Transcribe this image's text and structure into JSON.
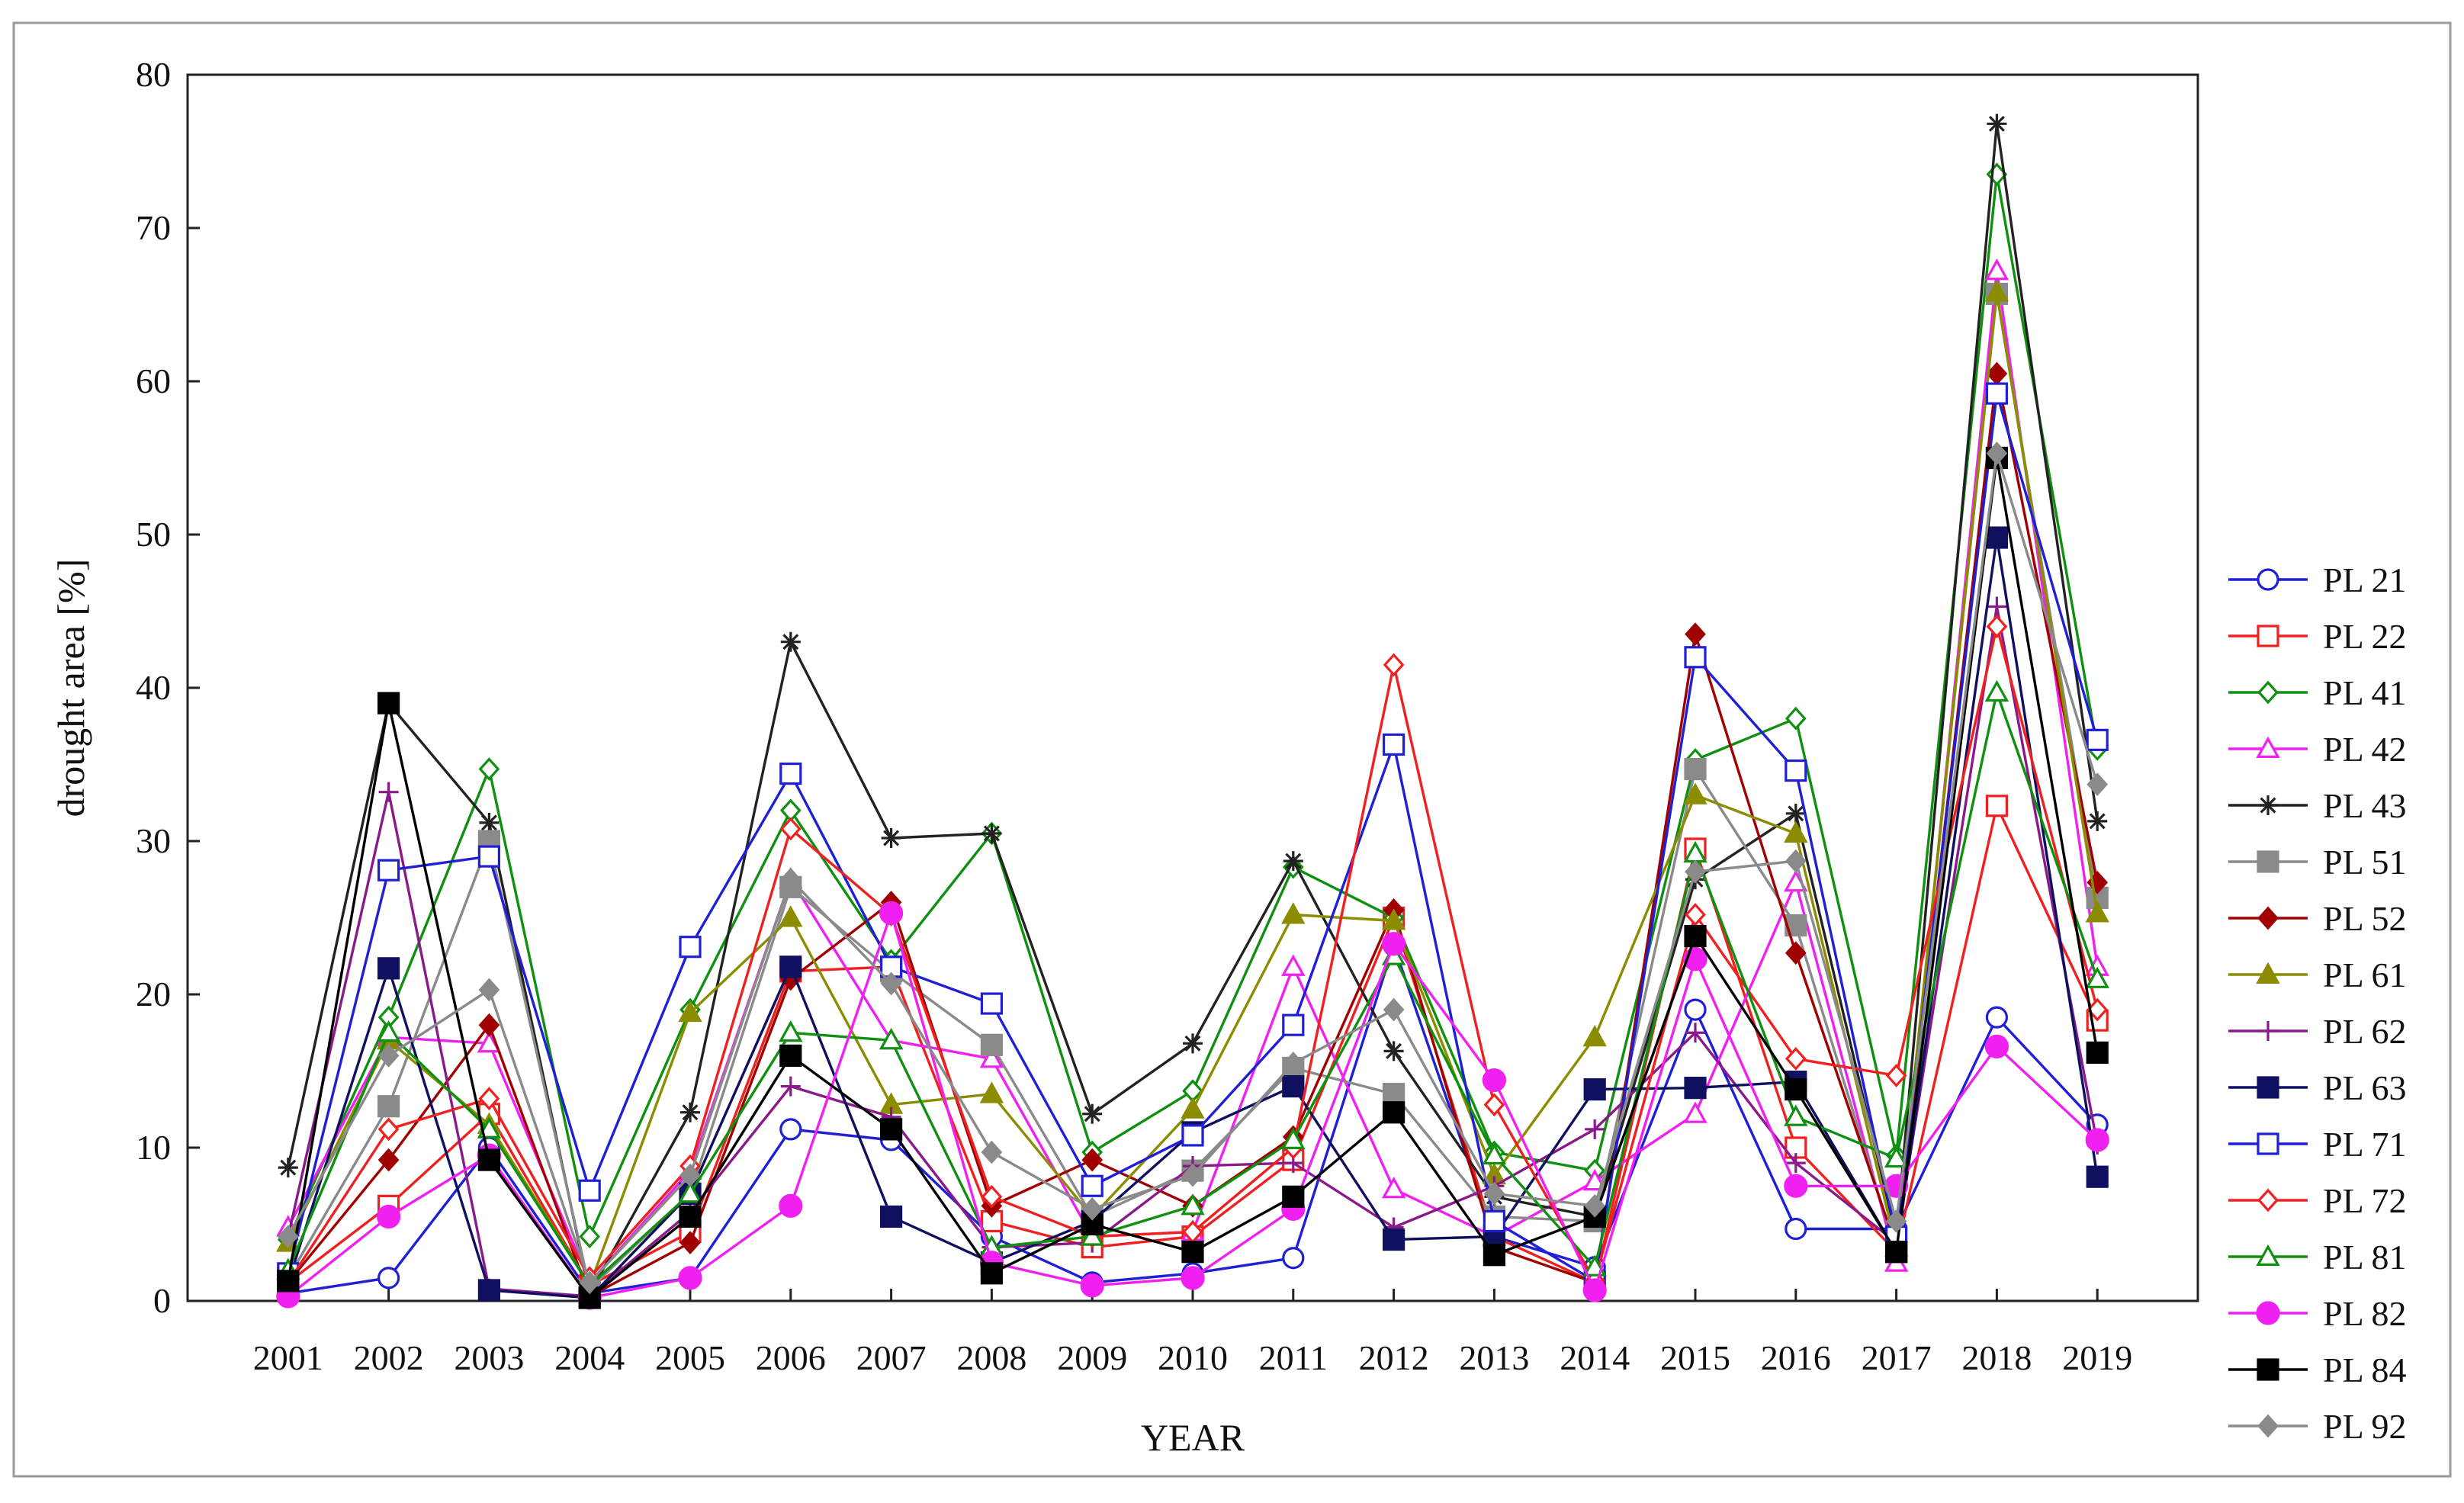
{
  "chart_data": {
    "type": "line",
    "title": "",
    "xlabel": "YEAR",
    "ylabel": "drought area [%]",
    "ylim": [
      0,
      80
    ],
    "yticks": [
      0,
      10,
      20,
      30,
      40,
      50,
      60,
      70,
      80
    ],
    "grid": false,
    "legend_position": "right",
    "categories": [
      "2001",
      "2002",
      "2003",
      "2004",
      "2005",
      "2006",
      "2007",
      "2008",
      "2009",
      "2010",
      "2011",
      "2012",
      "2013",
      "2014",
      "2015",
      "2016",
      "2017",
      "2018",
      "2019"
    ],
    "series": [
      {
        "name": "PL 21",
        "color": "#1f1fd6",
        "marker": "circle-open",
        "values": [
          0.5,
          1.5,
          10,
          0.5,
          1.5,
          11.2,
          10.5,
          4.2,
          1.2,
          1.8,
          2.8,
          23.2,
          4.2,
          2.2,
          19,
          4.7,
          4.7,
          18.5,
          11.5
        ]
      },
      {
        "name": "PL 22",
        "color": "#ef2020",
        "marker": "square-open",
        "values": [
          1.2,
          6.2,
          12.2,
          1,
          4.5,
          21.5,
          21.8,
          5.2,
          3.5,
          4.2,
          9.2,
          25,
          4.2,
          1.2,
          29.5,
          10,
          3.2,
          32.3,
          18.3
        ]
      },
      {
        "name": "PL 41",
        "color": "#109010",
        "marker": "diamond-open",
        "values": [
          4,
          18.5,
          34.7,
          4.2,
          19,
          32,
          22.2,
          30.5,
          9.7,
          13.7,
          28.3,
          25,
          9.7,
          8.5,
          35.3,
          38,
          9.5,
          73.5,
          36
        ]
      },
      {
        "name": "PL 42",
        "color": "#f020f0",
        "marker": "triangle-open",
        "values": [
          4.8,
          17.2,
          16.8,
          1.2,
          8.5,
          27.5,
          17,
          15.8,
          4.2,
          4.5,
          21.8,
          7.3,
          4.2,
          7.8,
          12.2,
          27.3,
          2.5,
          67.2,
          21.8
        ]
      },
      {
        "name": "PL 43",
        "color": "#222222",
        "marker": "star",
        "values": [
          8.7,
          39,
          31.2,
          0.5,
          12.3,
          43,
          30.2,
          30.5,
          12.2,
          16.8,
          28.7,
          16.3,
          6.8,
          5.5,
          27.5,
          31.8,
          4.2,
          76.8,
          31.3
        ]
      },
      {
        "name": "PL 51",
        "color": "#8a8a8a",
        "marker": "square-filled",
        "values": [
          1.5,
          12.7,
          30,
          0.8,
          7,
          27,
          21.5,
          16.7,
          5.5,
          8.5,
          15.2,
          13.5,
          5.5,
          5.2,
          34.7,
          24.5,
          3.2,
          65.7,
          26.3
        ]
      },
      {
        "name": "PL 52",
        "color": "#a00000",
        "marker": "diamond-filled",
        "values": [
          1.2,
          9.2,
          18,
          0.3,
          3.8,
          21,
          26,
          6.2,
          9.2,
          6.2,
          10.7,
          25.5,
          3.5,
          1.2,
          43.5,
          22.7,
          3.5,
          60.5,
          27.3
        ]
      },
      {
        "name": "PL 61",
        "color": "#8c8c00",
        "marker": "triangle-filled",
        "values": [
          3.8,
          17,
          11.5,
          1,
          18.8,
          25,
          12.8,
          13.5,
          5.5,
          12.5,
          25.2,
          24.8,
          8.2,
          17.2,
          33,
          30.5,
          3.5,
          65.8,
          25.3
        ]
      },
      {
        "name": "PL 62",
        "color": "#8a1a8a",
        "marker": "plus",
        "values": [
          4.2,
          33.2,
          0.8,
          0.3,
          5.8,
          14,
          12,
          3.5,
          3.8,
          8.8,
          9,
          4.8,
          7.5,
          11.2,
          17.5,
          9,
          3.8,
          45.3,
          10.2
        ]
      },
      {
        "name": "PL 63",
        "color": "#101060",
        "marker": "square-filled",
        "values": [
          1.2,
          21.7,
          0.7,
          0.2,
          7,
          21.8,
          5.5,
          2.5,
          5.2,
          11,
          14,
          4,
          4.2,
          13.8,
          13.9,
          14.3,
          3.2,
          49.8,
          8.1
        ]
      },
      {
        "name": "PL 71",
        "color": "#1f1fd6",
        "marker": "square-open",
        "values": [
          1.8,
          28.1,
          29,
          7.2,
          23.1,
          34.4,
          21.8,
          19.4,
          7.5,
          10.8,
          18,
          36.3,
          5.2,
          1.3,
          42,
          34.6,
          4.2,
          59.2,
          36.6
        ]
      },
      {
        "name": "PL 72",
        "color": "#ef2020",
        "marker": "diamond-open",
        "values": [
          1.2,
          11.2,
          13.2,
          1.5,
          8.8,
          30.8,
          25.2,
          6.8,
          4.2,
          4.5,
          10,
          41.5,
          12.8,
          1.3,
          25.2,
          15.8,
          14.7,
          44,
          19
        ]
      },
      {
        "name": "PL 81",
        "color": "#109010",
        "marker": "triangle-open",
        "values": [
          2,
          17.5,
          11.2,
          1,
          7,
          17.5,
          17,
          3.5,
          4.2,
          6.2,
          10.5,
          22.5,
          9.5,
          2.2,
          29.2,
          12,
          9.3,
          39.7,
          21
        ]
      },
      {
        "name": "PL 82",
        "color": "#f020f0",
        "marker": "circle-filled",
        "values": [
          0.3,
          5.5,
          9.5,
          0.2,
          1.5,
          6.2,
          25.3,
          2.5,
          1,
          1.5,
          6,
          23.3,
          14.4,
          0.7,
          22.3,
          7.5,
          7.5,
          16.6,
          10.5
        ]
      },
      {
        "name": "PL 84",
        "color": "#000000",
        "marker": "square-filled",
        "values": [
          1.3,
          39,
          9.2,
          0.2,
          5.5,
          16,
          11.2,
          1.8,
          5,
          3.2,
          6.8,
          12.3,
          3,
          5.5,
          23.8,
          13.8,
          3.2,
          55,
          16.2
        ]
      },
      {
        "name": "PL 92",
        "color": "#8a8a8a",
        "marker": "diamond-filled",
        "values": [
          4.2,
          16,
          20.3,
          1.2,
          8.2,
          27.5,
          20.7,
          9.7,
          6,
          8.2,
          15.5,
          19,
          7,
          6.2,
          28,
          28.7,
          5.2,
          55.3,
          33.7
        ]
      }
    ]
  }
}
